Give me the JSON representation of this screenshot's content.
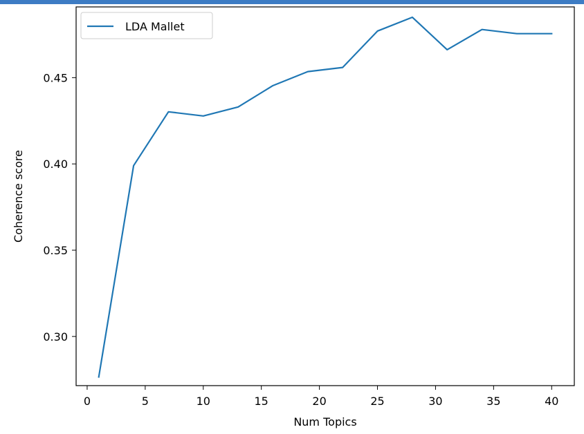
{
  "chart_data": {
    "type": "line",
    "title": "",
    "xlabel": "Num Topics",
    "ylabel": "Coherence score",
    "xlim": [
      -0.95,
      41.95
    ],
    "ylim": [
      0.2715,
      0.491
    ],
    "xticks": [
      0,
      5,
      10,
      15,
      20,
      25,
      30,
      35,
      40
    ],
    "yticks": [
      0.3,
      0.35,
      0.4,
      0.45
    ],
    "xtick_labels": [
      "0",
      "5",
      "10",
      "15",
      "20",
      "25",
      "30",
      "35",
      "40"
    ],
    "ytick_labels": [
      "0.30",
      "0.35",
      "0.40",
      "0.45"
    ],
    "grid": false,
    "legend_position": "top-left",
    "series": [
      {
        "name": "LDA Mallet",
        "color": "#1f77b4",
        "x": [
          1,
          4,
          7,
          10,
          13,
          16,
          19,
          22,
          25,
          28,
          31,
          34,
          37,
          40
        ],
        "y": [
          0.2765,
          0.399,
          0.4302,
          0.4278,
          0.433,
          0.4454,
          0.4535,
          0.4559,
          0.477,
          0.485,
          0.4662,
          0.4779,
          0.4755,
          0.4755
        ]
      }
    ]
  }
}
